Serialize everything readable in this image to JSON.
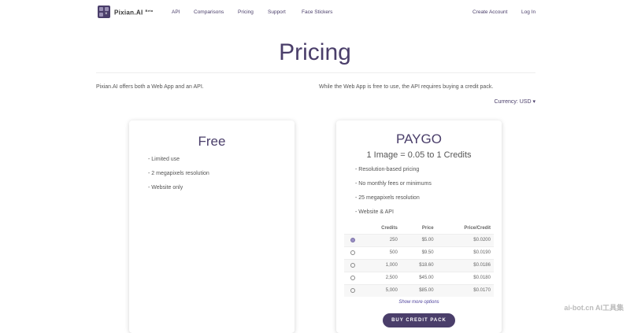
{
  "nav": {
    "brand": "Pixian.AI",
    "beta": "Beta",
    "links": [
      "API",
      "Comparisons",
      "Pricing",
      "Support",
      "Face Stickers"
    ],
    "create_account": "Create Account",
    "login": "Log In"
  },
  "page": {
    "title": "Pricing",
    "intro_left": "Pixian.AI offers both a Web App and an API.",
    "intro_right": "While the Web App is free to use, the API requires buying a credit pack.",
    "currency": "Currency: USD ▾"
  },
  "free": {
    "title": "Free",
    "features": [
      "- Limited use",
      "- 2 megapixels resolution",
      "- Website only"
    ]
  },
  "paygo": {
    "title": "PAYGO",
    "subtitle": "1 Image = 0.05 to 1 Credits",
    "features": [
      "- Resolution-based pricing",
      "- No monthly fees or minimums",
      "- 25 megapixels resolution",
      "- Website & API"
    ],
    "headers": [
      "Credits",
      "Price",
      "Price/Credit"
    ],
    "rows": [
      {
        "credits": "250",
        "price": "$5.00",
        "per": "$0.0200",
        "selected": true
      },
      {
        "credits": "500",
        "price": "$9.50",
        "per": "$0.0190"
      },
      {
        "credits": "1,000",
        "price": "$18.60",
        "per": "$0.0186"
      },
      {
        "credits": "2,500",
        "price": "$45.00",
        "per": "$0.0180"
      },
      {
        "credits": "5,000",
        "price": "$85.00",
        "per": "$0.0170"
      }
    ],
    "more": "Show more options",
    "buy": "BUY CREDIT PACK"
  },
  "watermark": "ai-bot.cn AI工具集",
  "colors": {
    "brand": "#4a3e6a"
  }
}
